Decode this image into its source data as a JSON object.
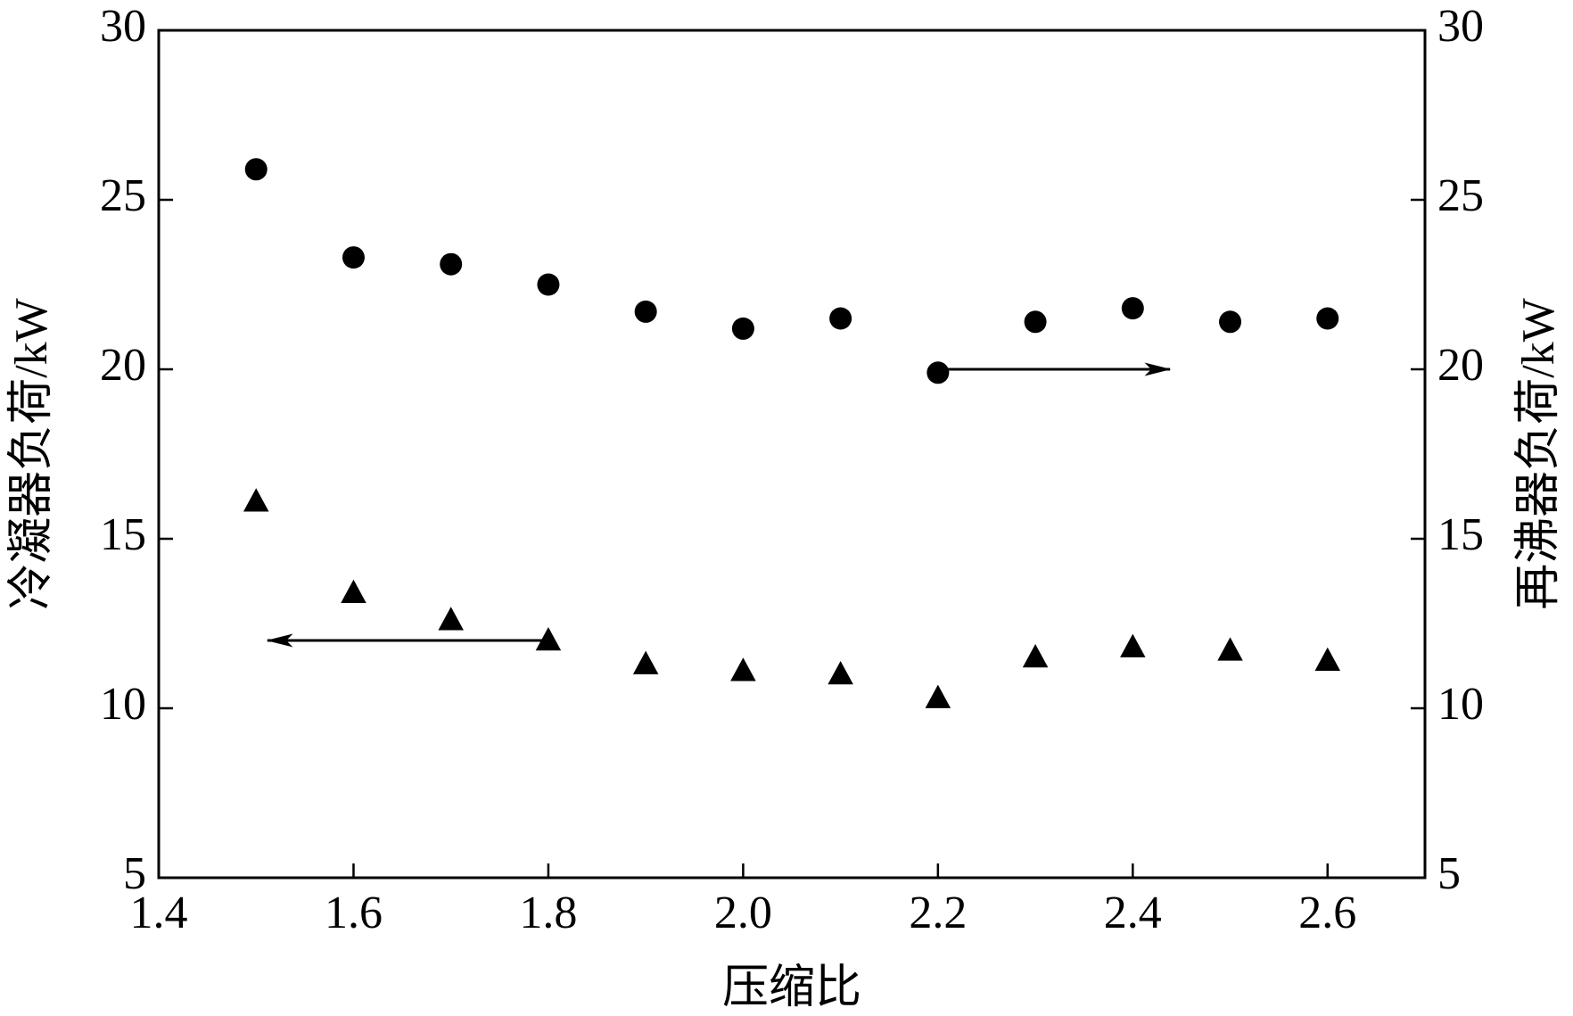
{
  "chart_data": {
    "type": "scatter",
    "x_label": "压缩比",
    "y_label": "冷凝器负荷/kW",
    "y2_label": "再沸器负荷/kW",
    "x": [
      1.5,
      1.6,
      1.7,
      1.8,
      1.9,
      2.0,
      2.1,
      2.2,
      2.3,
      2.4,
      2.5,
      2.6
    ],
    "series": [
      {
        "marker": "triangle",
        "color": "#000000",
        "axis": "y",
        "values": [
          16.1,
          13.4,
          12.6,
          12.0,
          11.3,
          11.1,
          11.0,
          10.3,
          11.5,
          11.8,
          11.7,
          11.4
        ]
      },
      {
        "marker": "circle",
        "color": "#000000",
        "axis": "y2",
        "values": [
          25.9,
          23.3,
          23.1,
          22.5,
          21.7,
          21.2,
          21.5,
          19.9,
          21.4,
          21.8,
          21.4,
          21.5
        ]
      }
    ],
    "xlim": [
      1.4,
      2.7
    ],
    "xticks": [
      1.4,
      1.6,
      1.8,
      {
        "value": 2.0,
        "label": "2.0"
      },
      2.2,
      2.4,
      2.6
    ],
    "ylim": [
      5,
      30
    ],
    "yticks": [
      5,
      10,
      15,
      20,
      25,
      30
    ],
    "y2lim": [
      5,
      30
    ],
    "y2ticks": [
      5,
      10,
      15,
      20,
      25,
      30
    ]
  }
}
